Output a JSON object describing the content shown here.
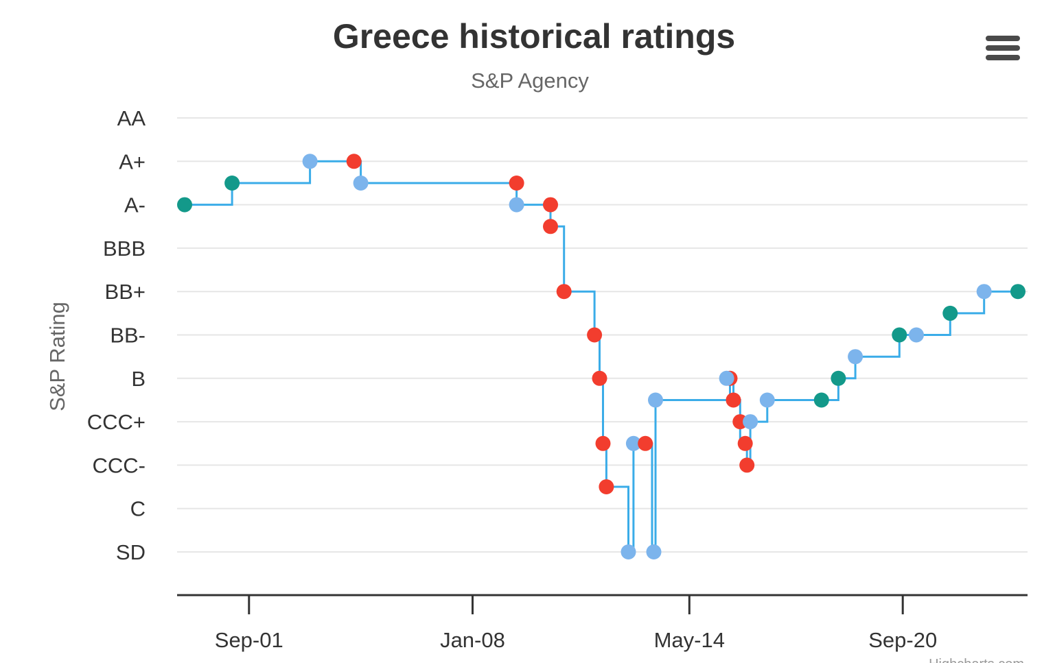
{
  "chart_data": {
    "type": "line",
    "step": true,
    "title": "Greece historical ratings",
    "subtitle": "S&P Agency",
    "ylabel": "S&P Rating",
    "xlabel": "",
    "y_categories": [
      "SD",
      "C",
      "CCC-",
      "CCC+",
      "B",
      "BB-",
      "BB+",
      "BBB",
      "A-",
      "A+",
      "AA"
    ],
    "y_half_step_note": "ratings between labelled ticks are plotted at half steps",
    "ylim": [
      -0.5,
      10.3
    ],
    "xlim": [
      1999.3,
      2024.5
    ],
    "x_ticks": [
      {
        "label": "Sep-01",
        "x": 2001.4
      },
      {
        "label": "Jan-08",
        "x": 2008.0
      },
      {
        "label": "May-14",
        "x": 2014.4
      },
      {
        "label": "Sep-20",
        "x": 2020.7
      }
    ],
    "grid": true,
    "legend": "none",
    "series_colors": {
      "line": "#3aace8",
      "upgrade": "#13998a",
      "downgrade": "#f23d2e",
      "outlook": "#7cb4ec"
    },
    "points": [
      {
        "x": 1999.5,
        "y": 8.0,
        "kind": "upgrade"
      },
      {
        "x": 2000.9,
        "y": 8.5,
        "kind": "upgrade"
      },
      {
        "x": 2003.2,
        "y": 9.0,
        "kind": "outlook"
      },
      {
        "x": 2004.5,
        "y": 9.0,
        "kind": "downgrade"
      },
      {
        "x": 2004.7,
        "y": 8.5,
        "kind": "outlook"
      },
      {
        "x": 2009.3,
        "y": 8.5,
        "kind": "downgrade"
      },
      {
        "x": 2009.3,
        "y": 8.0,
        "kind": "outlook"
      },
      {
        "x": 2010.3,
        "y": 8.0,
        "kind": "downgrade"
      },
      {
        "x": 2010.3,
        "y": 7.5,
        "kind": "downgrade"
      },
      {
        "x": 2010.7,
        "y": 6.0,
        "kind": "downgrade"
      },
      {
        "x": 2011.6,
        "y": 5.0,
        "kind": "downgrade"
      },
      {
        "x": 2011.75,
        "y": 4.0,
        "kind": "downgrade"
      },
      {
        "x": 2011.85,
        "y": 2.5,
        "kind": "downgrade"
      },
      {
        "x": 2011.95,
        "y": 1.5,
        "kind": "downgrade"
      },
      {
        "x": 2012.6,
        "y": 0.0,
        "kind": "outlook"
      },
      {
        "x": 2012.75,
        "y": 2.5,
        "kind": "outlook"
      },
      {
        "x": 2013.1,
        "y": 2.5,
        "kind": "downgrade"
      },
      {
        "x": 2013.35,
        "y": 0.0,
        "kind": "outlook"
      },
      {
        "x": 2013.4,
        "y": 3.5,
        "kind": "outlook"
      },
      {
        "x": 2015.6,
        "y": 4.0,
        "kind": "downgrade"
      },
      {
        "x": 2015.5,
        "y": 4.0,
        "kind": "outlook"
      },
      {
        "x": 2015.7,
        "y": 3.5,
        "kind": "downgrade"
      },
      {
        "x": 2015.9,
        "y": 3.0,
        "kind": "downgrade"
      },
      {
        "x": 2016.05,
        "y": 2.5,
        "kind": "downgrade"
      },
      {
        "x": 2016.1,
        "y": 2.0,
        "kind": "downgrade"
      },
      {
        "x": 2016.2,
        "y": 3.0,
        "kind": "outlook"
      },
      {
        "x": 2016.7,
        "y": 3.5,
        "kind": "outlook"
      },
      {
        "x": 2018.3,
        "y": 3.5,
        "kind": "upgrade"
      },
      {
        "x": 2018.8,
        "y": 4.0,
        "kind": "upgrade"
      },
      {
        "x": 2019.3,
        "y": 4.5,
        "kind": "outlook"
      },
      {
        "x": 2020.6,
        "y": 5.0,
        "kind": "upgrade"
      },
      {
        "x": 2021.1,
        "y": 5.0,
        "kind": "outlook"
      },
      {
        "x": 2022.1,
        "y": 5.5,
        "kind": "upgrade"
      },
      {
        "x": 2023.1,
        "y": 6.0,
        "kind": "outlook"
      },
      {
        "x": 2024.1,
        "y": 6.0,
        "kind": "upgrade"
      }
    ],
    "step_path": [
      [
        1999.5,
        8.0
      ],
      [
        2000.9,
        8.0
      ],
      [
        2000.9,
        8.5
      ],
      [
        2003.2,
        8.5
      ],
      [
        2003.2,
        9.0
      ],
      [
        2004.7,
        9.0
      ],
      [
        2004.7,
        8.5
      ],
      [
        2009.3,
        8.5
      ],
      [
        2009.3,
        8.0
      ],
      [
        2010.3,
        8.0
      ],
      [
        2010.3,
        7.5
      ],
      [
        2010.7,
        7.5
      ],
      [
        2010.7,
        6.0
      ],
      [
        2011.6,
        6.0
      ],
      [
        2011.6,
        5.0
      ],
      [
        2011.75,
        5.0
      ],
      [
        2011.75,
        4.0
      ],
      [
        2011.85,
        4.0
      ],
      [
        2011.85,
        2.5
      ],
      [
        2011.95,
        2.5
      ],
      [
        2011.95,
        1.5
      ],
      [
        2012.6,
        1.5
      ],
      [
        2012.6,
        0.0
      ],
      [
        2012.75,
        0.0
      ],
      [
        2012.75,
        2.5
      ],
      [
        2013.3,
        2.5
      ],
      [
        2013.3,
        0.0
      ],
      [
        2013.4,
        0.0
      ],
      [
        2013.4,
        3.5
      ],
      [
        2015.6,
        3.5
      ],
      [
        2015.6,
        4.0
      ],
      [
        2015.7,
        4.0
      ],
      [
        2015.7,
        3.5
      ],
      [
        2015.9,
        3.5
      ],
      [
        2015.9,
        2.5
      ],
      [
        2016.1,
        2.5
      ],
      [
        2016.1,
        2.0
      ],
      [
        2016.2,
        2.0
      ],
      [
        2016.2,
        3.0
      ],
      [
        2016.7,
        3.0
      ],
      [
        2016.7,
        3.5
      ],
      [
        2018.8,
        3.5
      ],
      [
        2018.8,
        4.0
      ],
      [
        2019.3,
        4.0
      ],
      [
        2019.3,
        4.5
      ],
      [
        2020.6,
        4.5
      ],
      [
        2020.6,
        5.0
      ],
      [
        2022.1,
        5.0
      ],
      [
        2022.1,
        5.5
      ],
      [
        2023.1,
        5.5
      ],
      [
        2023.1,
        6.0
      ],
      [
        2024.1,
        6.0
      ]
    ]
  },
  "menu": {
    "icon": "hamburger-menu-icon"
  },
  "credits": "Highcharts.com"
}
